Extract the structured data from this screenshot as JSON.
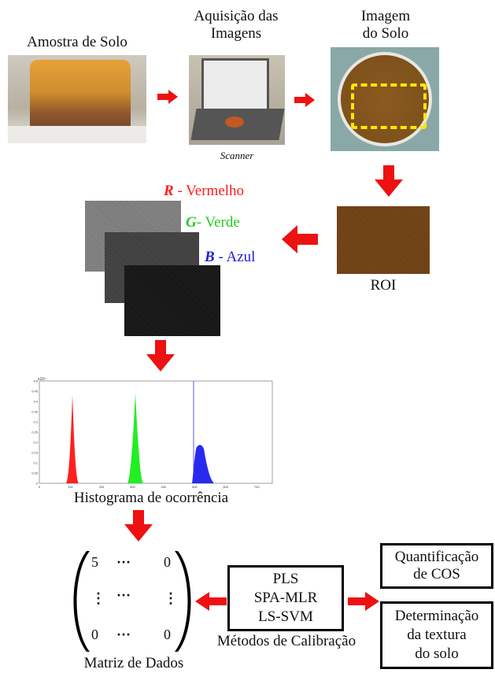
{
  "steps": {
    "sample_label": "Amostra de Solo",
    "acquisition_label_1": "Aquisição das",
    "acquisition_label_2": "Imagens",
    "scanner_caption": "Scanner",
    "soil_image_label_1": "Imagem",
    "soil_image_label_2": "do Solo",
    "roi_label": "ROI"
  },
  "channels": {
    "red_letter": "R",
    "red_label": " - Vermelho",
    "green_letter": "G",
    "green_label": "- Verde",
    "blue_letter": "B",
    "blue_label": " - Azul",
    "colors": {
      "red": "#ff1a1a",
      "green": "#22dd22",
      "blue": "#2020dd"
    }
  },
  "histogram": {
    "caption": "Histograma de ocorrência",
    "y_exponent": "x10⁴",
    "y_ticks": [
      "0.5",
      "0.45",
      "0.4",
      "0.35",
      "0.3",
      "0.25",
      "0.2",
      "0.15",
      "0.1",
      "0.05",
      "0"
    ],
    "x_ticks": [
      "0",
      "100",
      "200",
      "300",
      "400",
      "500",
      "600",
      "700"
    ]
  },
  "matrix": {
    "caption": "Matriz de Dados",
    "rows": [
      [
        "5",
        "···",
        "0"
      ],
      [
        "⋮",
        "···",
        "⋮"
      ],
      [
        "0",
        "···",
        "0"
      ]
    ]
  },
  "methods": {
    "items": [
      "PLS",
      "SPA-MLR",
      "LS-SVM"
    ],
    "caption": "Métodos de Calibração"
  },
  "outputs": {
    "cos_1": "Quantificação",
    "cos_2": "de COS",
    "texture_1": "Determinação",
    "texture_2": "da textura",
    "texture_3": "do solo"
  }
}
